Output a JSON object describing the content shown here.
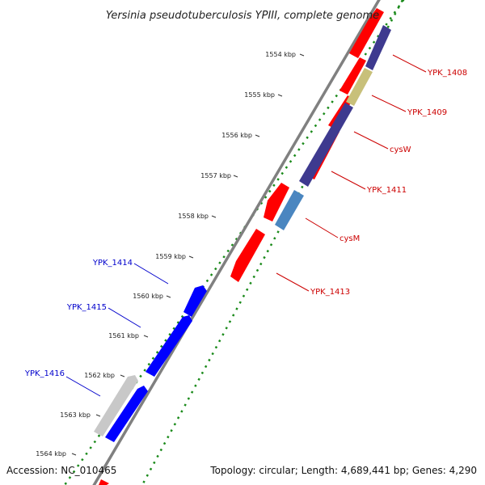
{
  "map": {
    "title": "Yersinia pseudotuberculosis YPIII, complete genome",
    "accession": "Accession: NC_010465",
    "summary": "Topology: circular; Length: 4,689,441 bp; Genes: 4,290",
    "colors": {
      "backbone": "#808080",
      "forward_gene": "#ff0000",
      "reverse_gene": "#0000ff",
      "reverse_pseudogene": "#c8c8c8",
      "forward_label": "#cc0000",
      "reverse_label": "#0000cc",
      "feature_navy": "#3e3a8f",
      "feature_olive": "#c8c07a",
      "feature_steel": "#4a86c0",
      "dot_outer": "#1a8a1a",
      "dot_inner": "#1a8a1a"
    },
    "ticks": [
      {
        "label": "1554 kbp"
      },
      {
        "label": "1555 kbp"
      },
      {
        "label": "1556 kbp"
      },
      {
        "label": "1557 kbp"
      },
      {
        "label": "1558 kbp"
      },
      {
        "label": "1559 kbp"
      },
      {
        "label": "1560 kbp"
      },
      {
        "label": "1561 kbp"
      },
      {
        "label": "1562 kbp"
      },
      {
        "label": "1563 kbp"
      },
      {
        "label": "1564 kbp"
      }
    ],
    "forward_labels": [
      "YPK_1408",
      "YPK_1409",
      "cysW",
      "YPK_1411",
      "cysM",
      "YPK_1413"
    ],
    "reverse_labels": [
      "YPK_1414",
      "YPK_1415",
      "YPK_1416"
    ]
  }
}
